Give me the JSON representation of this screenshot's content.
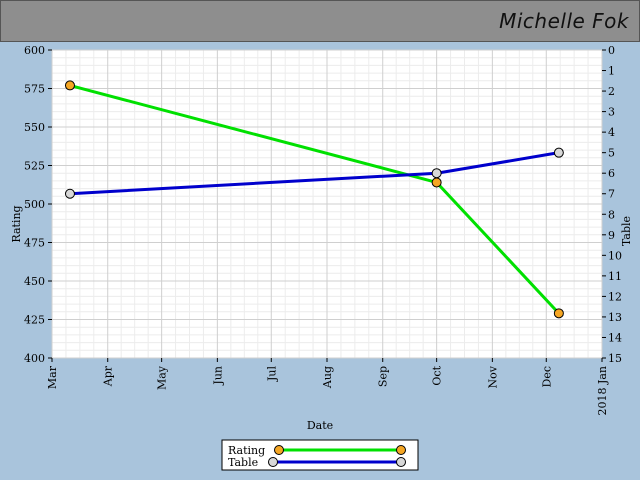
{
  "header": {
    "name": "Michelle Fok"
  },
  "chart_data": {
    "type": "line",
    "xlabel": "Date",
    "ylabel": "Rating",
    "y2label": "Table",
    "x_ticks": [
      "Mar",
      "Apr",
      "May",
      "Jun",
      "Jul",
      "Aug",
      "Sep",
      "Oct",
      "Nov",
      "Dec",
      "2018 Jan"
    ],
    "x_range": [
      "2017-03-01",
      "2018-01-01"
    ],
    "ylim": [
      400,
      600
    ],
    "y_ticks": [
      400,
      425,
      450,
      475,
      500,
      525,
      550,
      575,
      600
    ],
    "y2lim": [
      15,
      0
    ],
    "y2_ticks": [
      0,
      1,
      2,
      3,
      4,
      5,
      6,
      7,
      8,
      9,
      10,
      11,
      12,
      13,
      14,
      15
    ],
    "grid": true,
    "legend_position": "bottom-center",
    "series": [
      {
        "name": "Rating",
        "axis": "left",
        "color": "#00e000",
        "marker_color": "#f5a623",
        "points": [
          {
            "x": "2017-03-11",
            "y": 577
          },
          {
            "x": "2017-10-01",
            "y": 514
          },
          {
            "x": "2017-12-08",
            "y": 429
          }
        ]
      },
      {
        "name": "Table",
        "axis": "right",
        "color": "#0000cc",
        "marker_color": "#d8d8d8",
        "points": [
          {
            "x": "2017-03-11",
            "y": 7
          },
          {
            "x": "2017-10-01",
            "y": 6
          },
          {
            "x": "2017-12-08",
            "y": 5
          }
        ]
      }
    ]
  }
}
